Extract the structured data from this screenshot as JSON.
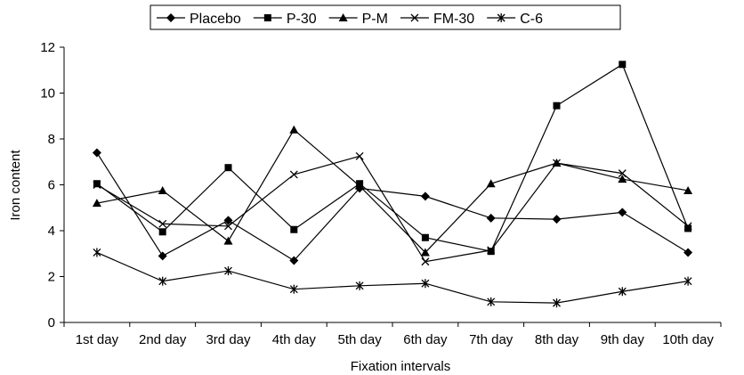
{
  "chart_data": {
    "type": "line",
    "xlabel": "Fixation intervals",
    "ylabel": "Iron content",
    "ylim": [
      0,
      12
    ],
    "yticks": [
      0,
      2,
      4,
      6,
      8,
      10,
      12
    ],
    "grid": false,
    "legend_position": "top",
    "categories": [
      "1st day",
      "2nd day",
      "3rd day",
      "4th day",
      "5th day",
      "6th day",
      "7th day",
      "8th day",
      "9th day",
      "10th day"
    ],
    "series": [
      {
        "name": "Placebo",
        "marker": "diamond",
        "values": [
          7.4,
          2.9,
          4.45,
          2.7,
          5.85,
          5.5,
          4.55,
          4.5,
          4.8,
          3.05
        ]
      },
      {
        "name": "P-30",
        "marker": "square",
        "values": [
          6.05,
          3.95,
          6.75,
          4.05,
          6.05,
          3.7,
          3.1,
          9.45,
          11.25,
          4.1
        ]
      },
      {
        "name": "P-M",
        "marker": "triangle",
        "values": [
          5.2,
          5.75,
          3.55,
          8.4,
          5.95,
          3.05,
          6.05,
          6.95,
          6.25,
          5.75
        ]
      },
      {
        "name": "FM-30",
        "marker": "x",
        "values": [
          6.0,
          4.3,
          4.2,
          6.45,
          7.25,
          2.65,
          3.15,
          6.95,
          6.5,
          4.2
        ]
      },
      {
        "name": "C-6",
        "marker": "star",
        "values": [
          3.05,
          1.8,
          2.25,
          1.45,
          1.6,
          1.7,
          0.9,
          0.85,
          1.35,
          1.8
        ]
      }
    ],
    "colors": {
      "line": "#000000",
      "background": "#ffffff"
    }
  }
}
